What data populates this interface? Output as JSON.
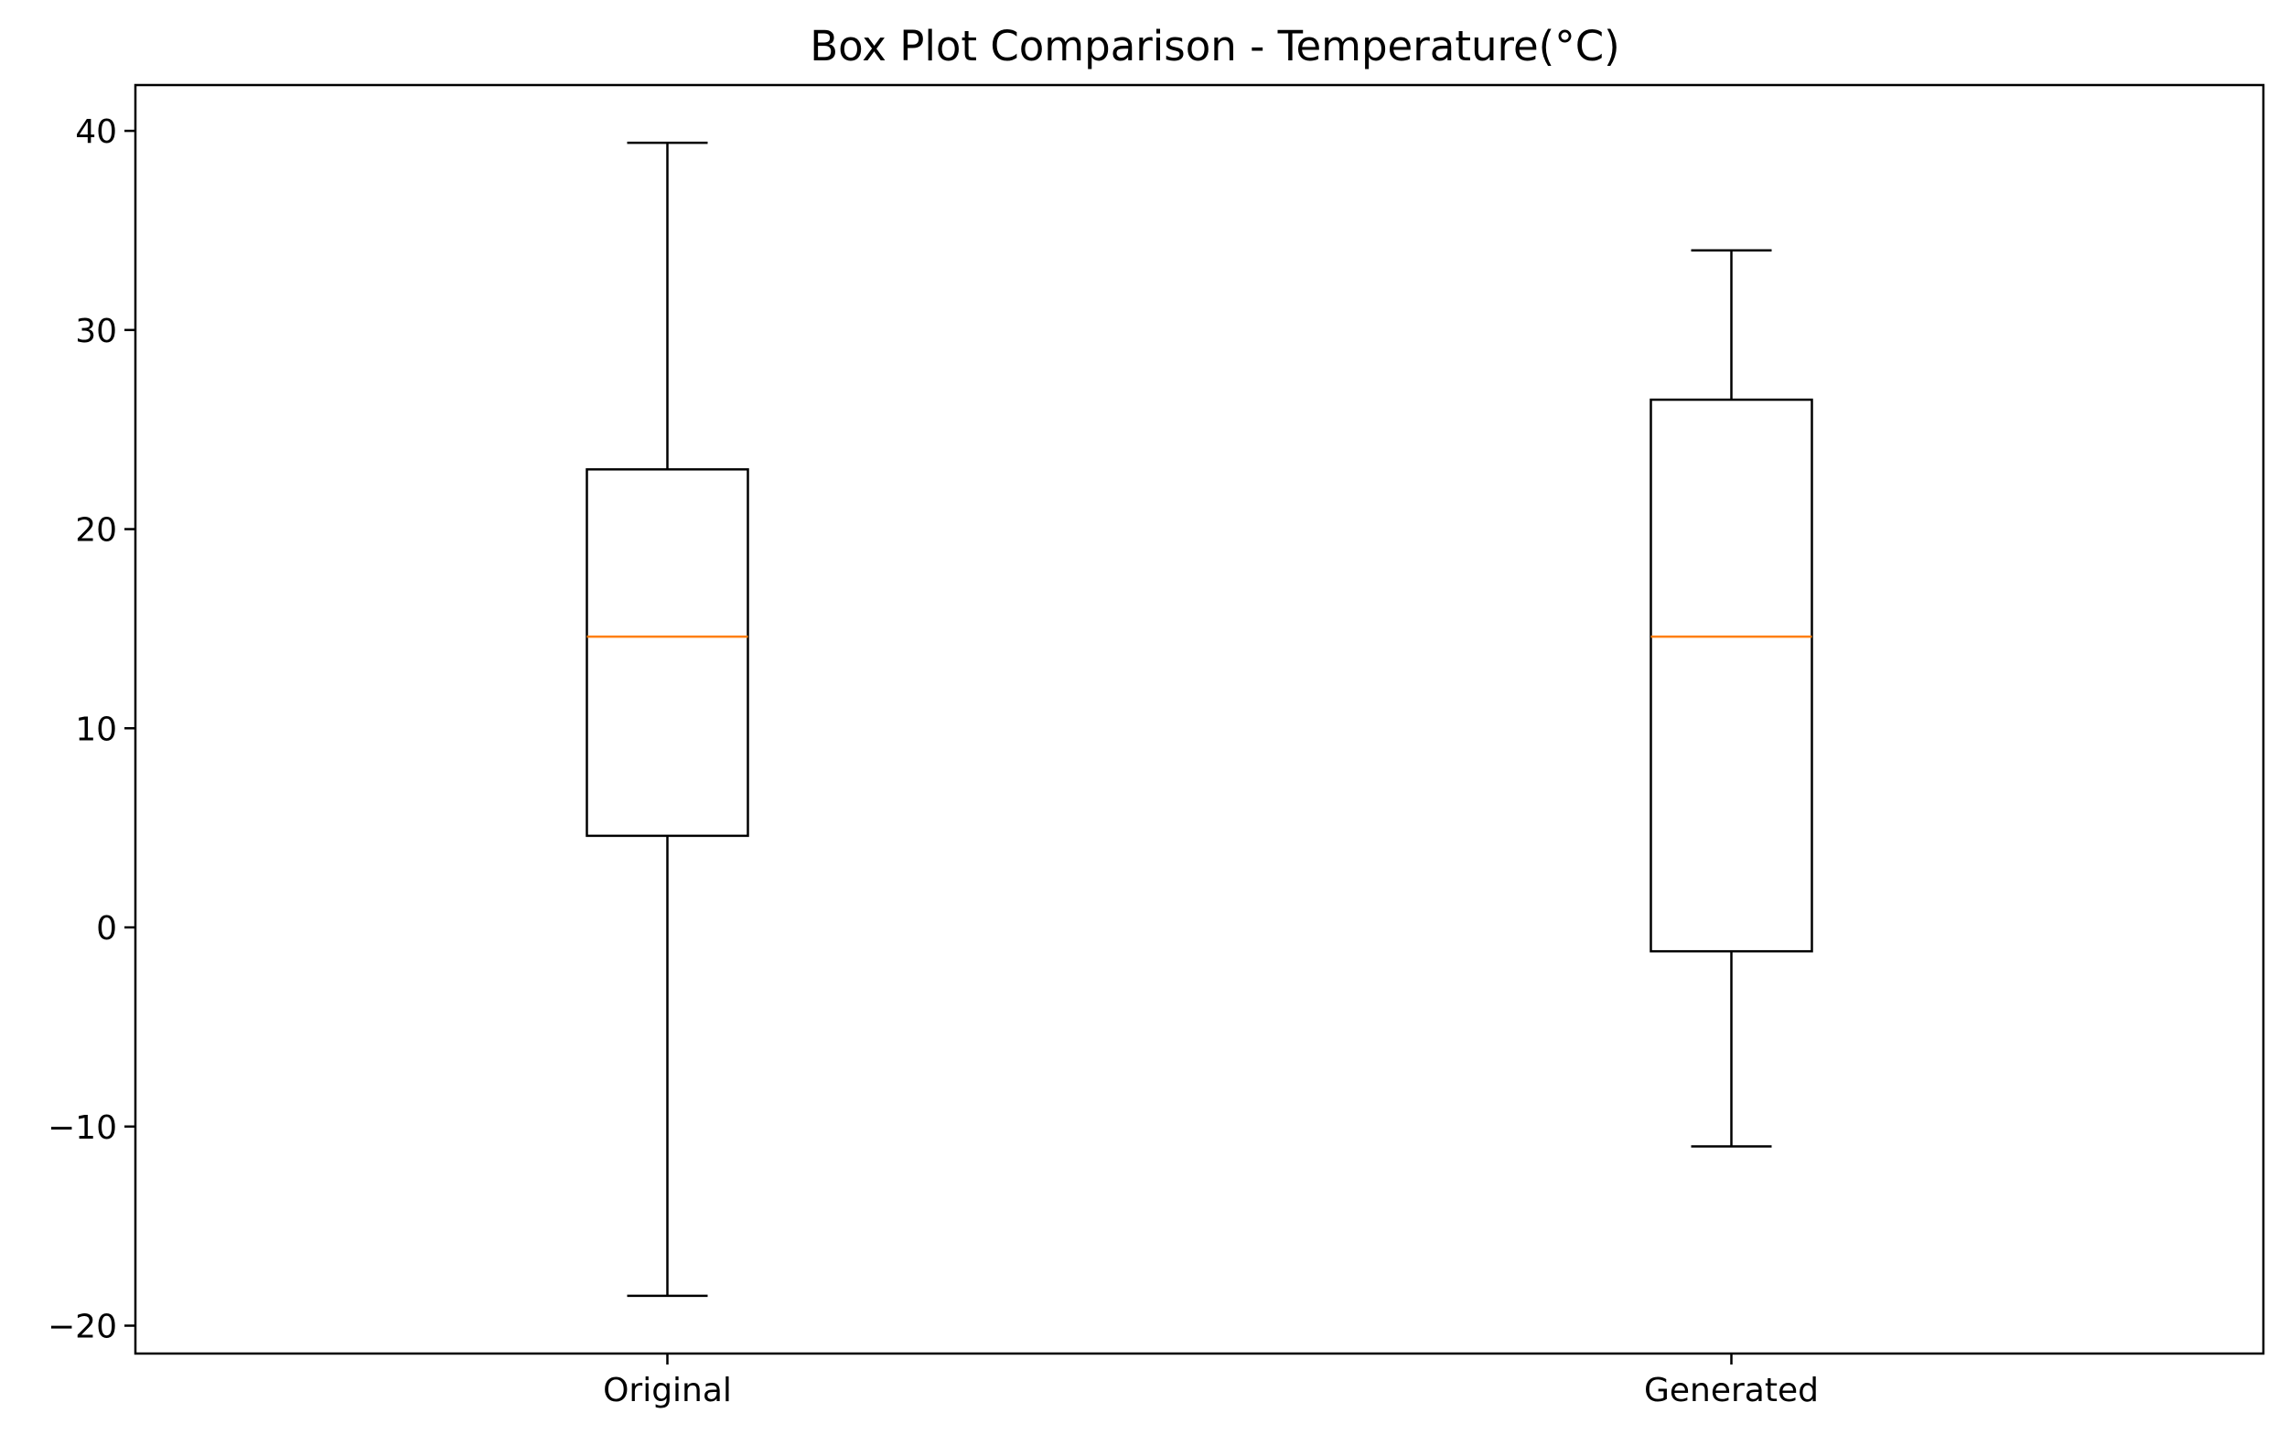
{
  "chart_data": {
    "type": "box",
    "title": "Box Plot Comparison - Temperature(°C)",
    "xlabel": "",
    "ylabel": "",
    "categories": [
      "Original",
      "Generated"
    ],
    "boxes": [
      {
        "label": "Original",
        "whisker_low": -18.5,
        "q1": 4.6,
        "median": 14.6,
        "q3": 23.0,
        "whisker_high": 39.4
      },
      {
        "label": "Generated",
        "whisker_low": -11.0,
        "q1": -1.2,
        "median": 14.6,
        "q3": 26.5,
        "whisker_high": 34.0
      }
    ],
    "yticks": [
      -20,
      -10,
      0,
      10,
      20,
      30,
      40
    ],
    "ytick_labels": [
      "−20",
      "−10",
      "0",
      "10",
      "20",
      "30",
      "40"
    ],
    "ylim": [
      -21.4,
      42.3
    ],
    "grid": false,
    "legend": "none",
    "colors": {
      "box": "#000000",
      "whisker": "#000000",
      "median": "#ff7f0e",
      "axes": "#000000",
      "background": "#ffffff"
    }
  }
}
